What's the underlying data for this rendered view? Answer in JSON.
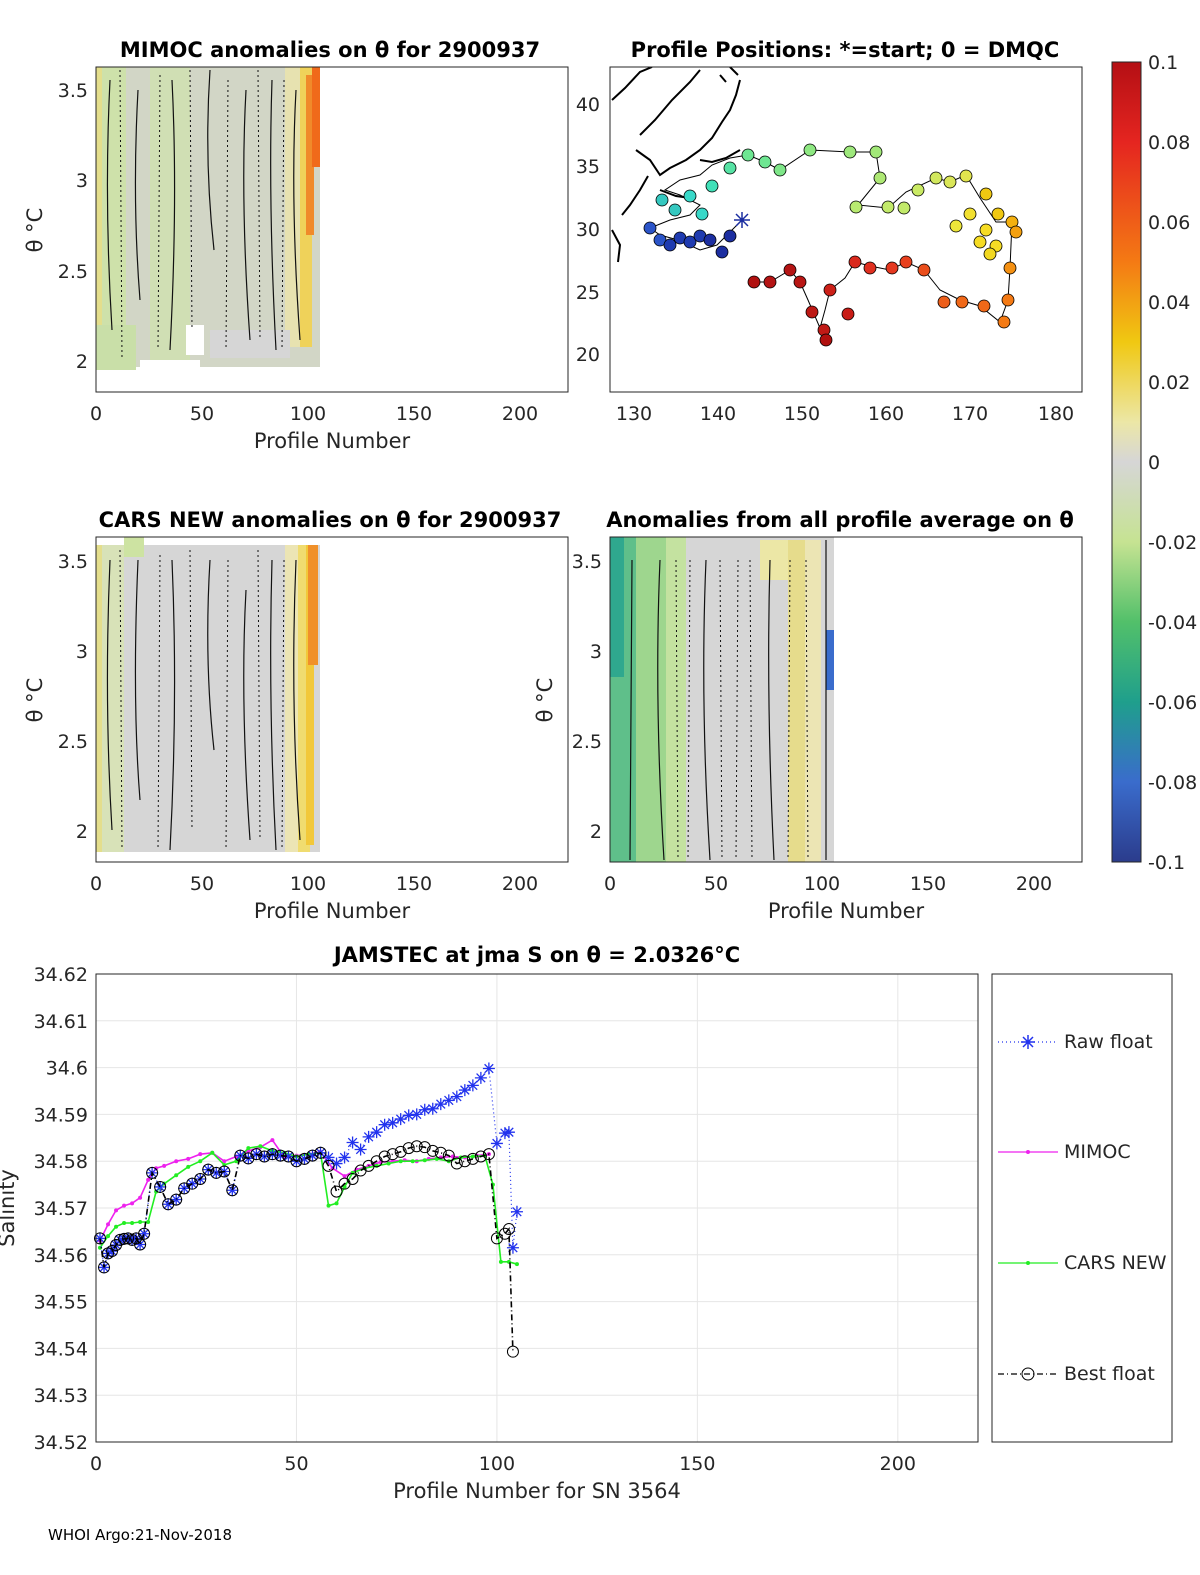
{
  "footer": "WHOI Argo:21-Nov-2018",
  "colors": {
    "raw": "#2233ee",
    "mimoc": "#ee22ee",
    "cars": "#22ee22",
    "best": "#000000"
  },
  "colorbar": {
    "range": [
      -0.1,
      0.1
    ],
    "ticks": [
      "0.1",
      "0.08",
      "0.06",
      "0.04",
      "0.02",
      "0",
      "-0.02",
      "-0.04",
      "-0.06",
      "-0.08",
      "-0.1"
    ]
  },
  "panels": {
    "mimoc": {
      "title": "MIMOC anomalies on θ  for 2900937",
      "xlabel": "Profile Number",
      "ylabel": "θ °C",
      "xticks": [
        "0",
        "50",
        "100",
        "150",
        "200"
      ],
      "yticks": [
        "3.5",
        "3",
        "2.5",
        "2"
      ]
    },
    "map": {
      "title": "Profile Positions: *=start; 0 = DMQC",
      "xticks": [
        "130",
        "140",
        "150",
        "160",
        "170",
        "180"
      ],
      "yticks": [
        "40",
        "35",
        "30",
        "25",
        "20"
      ]
    },
    "cars": {
      "title": "CARS NEW anomalies on θ for 2900937",
      "xlabel": "Profile Number",
      "ylabel": "θ °C",
      "xticks": [
        "0",
        "50",
        "100",
        "150",
        "200"
      ],
      "yticks": [
        "3.5",
        "3",
        "2.5",
        "2"
      ]
    },
    "allavg": {
      "title": "Anomalies from all profile average on θ",
      "xlabel": "Profile Number",
      "ylabel": "θ °C",
      "xticks": [
        "0",
        "50",
        "100",
        "150",
        "200"
      ],
      "yticks": [
        "3.5",
        "3",
        "2.5",
        "2"
      ]
    }
  },
  "chart_data": {
    "type": "line",
    "title": "JAMSTEC at jma S on θ = 2.0326°C",
    "xlabel": "Profile Number for SN 3564",
    "ylabel": "Salinity",
    "xlim": [
      0,
      220
    ],
    "ylim": [
      34.52,
      34.62
    ],
    "xticks": [
      "0",
      "50",
      "100",
      "150",
      "200"
    ],
    "yticks": [
      "34.62",
      "34.61",
      "34.6",
      "34.59",
      "34.58",
      "34.57",
      "34.56",
      "34.55",
      "34.54",
      "34.53",
      "34.52"
    ],
    "legend": [
      "Raw float",
      "MIMOC",
      "CARS NEW",
      "Best float"
    ],
    "series": [
      {
        "name": "Raw float",
        "x": [
          1,
          2,
          3,
          4,
          5,
          6,
          7,
          8,
          9,
          10,
          11,
          12,
          14,
          16,
          18,
          20,
          22,
          24,
          26,
          28,
          30,
          32,
          34,
          36,
          38,
          40,
          42,
          44,
          46,
          48,
          50,
          52,
          54,
          56,
          58,
          60,
          62,
          64,
          66,
          68,
          70,
          72,
          74,
          76,
          78,
          80,
          82,
          84,
          86,
          88,
          90,
          92,
          94,
          96,
          98,
          100,
          102,
          103,
          104,
          105
        ],
        "values": [
          34.5635,
          34.5573,
          34.5603,
          34.5608,
          34.5621,
          34.5632,
          34.5634,
          34.5635,
          34.5632,
          34.5635,
          34.5622,
          34.5645,
          34.5775,
          34.5745,
          34.5708,
          34.5718,
          34.5742,
          34.5752,
          34.5762,
          34.5782,
          34.5775,
          34.5778,
          34.5738,
          34.5812,
          34.5806,
          34.5815,
          34.581,
          34.5815,
          34.5812,
          34.581,
          34.58,
          34.5805,
          34.5812,
          34.5818,
          34.5808,
          34.5795,
          34.5808,
          34.584,
          34.5825,
          34.5852,
          34.5862,
          34.5878,
          34.5882,
          34.589,
          34.5898,
          34.59,
          34.591,
          34.5912,
          34.5922,
          34.593,
          34.5938,
          34.5952,
          34.5962,
          34.5978,
          34.5998,
          34.5838,
          34.586,
          34.5862,
          34.5615,
          34.5692
        ]
      },
      {
        "name": "MIMOC",
        "x": [
          1,
          3,
          5,
          7,
          9,
          11,
          13,
          15,
          17,
          20,
          23,
          26,
          29,
          32,
          35,
          38,
          41,
          44,
          47,
          50,
          53,
          56,
          59,
          62,
          65,
          68,
          71,
          74,
          77,
          80,
          83,
          86,
          89,
          92,
          95,
          98
        ],
        "values": [
          34.563,
          34.5665,
          34.5695,
          34.5705,
          34.571,
          34.5722,
          34.576,
          34.5785,
          34.579,
          34.58,
          34.5805,
          34.5815,
          34.5818,
          34.58,
          34.581,
          34.5822,
          34.583,
          34.5845,
          34.5808,
          34.5812,
          34.5815,
          34.582,
          34.5785,
          34.5768,
          34.5782,
          34.579,
          34.5798,
          34.58,
          34.5802,
          34.58,
          34.5805,
          34.5808,
          34.581,
          34.5808,
          34.5812,
          34.5815
        ]
      },
      {
        "name": "CARS NEW",
        "x": [
          1,
          3,
          5,
          7,
          9,
          11,
          13,
          15,
          17,
          20,
          23,
          26,
          29,
          32,
          35,
          38,
          41,
          44,
          47,
          50,
          53,
          56,
          58,
          60,
          62,
          64,
          67,
          70,
          73,
          76,
          79,
          82,
          85,
          88,
          91,
          94,
          97,
          99,
          101,
          103,
          105
        ],
        "values": [
          34.5615,
          34.564,
          34.566,
          34.5668,
          34.5668,
          34.567,
          34.567,
          34.5735,
          34.5752,
          34.577,
          34.5788,
          34.58,
          34.5818,
          34.5792,
          34.58,
          34.5828,
          34.5832,
          34.5822,
          34.5818,
          34.581,
          34.5815,
          34.5818,
          34.5705,
          34.571,
          34.5745,
          34.5775,
          34.5785,
          34.579,
          34.5795,
          34.58,
          34.58,
          34.5802,
          34.5805,
          34.58,
          34.5808,
          34.581,
          34.5812,
          34.575,
          34.5585,
          34.5585,
          34.558
        ]
      },
      {
        "name": "Best float",
        "x": [
          1,
          2,
          3,
          4,
          5,
          6,
          7,
          8,
          9,
          10,
          11,
          12,
          14,
          16,
          18,
          20,
          22,
          24,
          26,
          28,
          30,
          32,
          34,
          36,
          38,
          40,
          42,
          44,
          46,
          48,
          50,
          52,
          54,
          56,
          58,
          60,
          62,
          64,
          66,
          68,
          70,
          72,
          74,
          76,
          78,
          80,
          82,
          84,
          86,
          88,
          90,
          92,
          94,
          96,
          98,
          100,
          102,
          103,
          104
        ],
        "values": [
          34.5635,
          34.5573,
          34.5603,
          34.5608,
          34.5621,
          34.5632,
          34.5634,
          34.5635,
          34.5632,
          34.5635,
          34.5622,
          34.5645,
          34.5775,
          34.5745,
          34.5708,
          34.5718,
          34.5742,
          34.5752,
          34.5762,
          34.5782,
          34.5775,
          34.5778,
          34.5738,
          34.5812,
          34.5806,
          34.5815,
          34.581,
          34.5815,
          34.5812,
          34.581,
          34.58,
          34.5805,
          34.5812,
          34.5818,
          34.579,
          34.5735,
          34.5752,
          34.5762,
          34.578,
          34.579,
          34.58,
          34.581,
          34.5815,
          34.582,
          34.5828,
          34.5832,
          34.583,
          34.5822,
          34.5818,
          34.5812,
          34.5795,
          34.58,
          34.5805,
          34.581,
          34.5815,
          34.5635,
          34.5645,
          34.5655,
          34.5393
        ]
      }
    ]
  }
}
